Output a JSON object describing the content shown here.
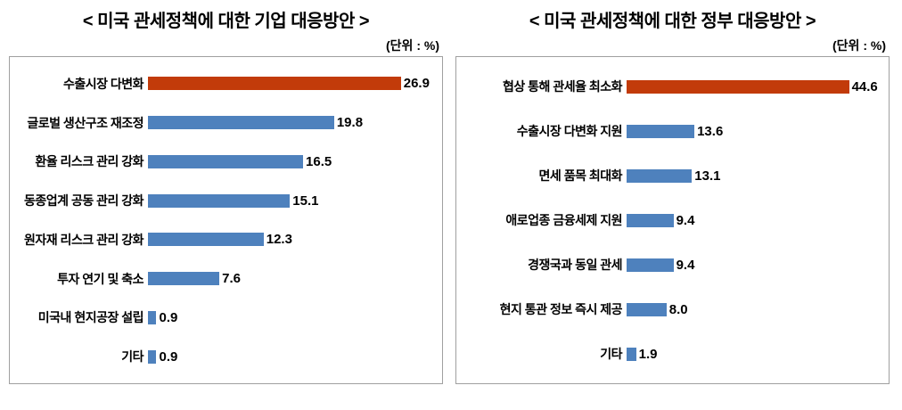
{
  "chart_data": [
    {
      "type": "bar",
      "orientation": "horizontal",
      "title": "<  미국  관세정책에  대한  기업  대응방안  >",
      "unit_label": "(단위 : %)",
      "categories": [
        "수출시장 다변화",
        "글로벌 생산구조 재조정",
        "환율 리스크 관리 강화",
        "동종업계 공동 관리 강화",
        "원자재 리스크 관리 강화",
        "투자 연기 및 축소",
        "미국내 현지공장 설립",
        "기타"
      ],
      "values": [
        26.9,
        19.8,
        16.5,
        15.1,
        12.3,
        7.6,
        0.9,
        0.9
      ],
      "xlim": [
        0,
        31
      ],
      "highlight_index": 0,
      "colors": {
        "highlight": "#c23b0a",
        "default": "#4e81bd"
      },
      "value_decimals": 1,
      "grid": false,
      "legend": false
    },
    {
      "type": "bar",
      "orientation": "horizontal",
      "title": "<  미국  관세정책에  대한  정부  대응방안  >",
      "unit_label": "(단위 : %)",
      "categories": [
        "협상 통해 관세율 최소화",
        "수출시장 다변화 지원",
        "면세 품목 최대화",
        "애로업종 금융세제 지원",
        "경쟁국과 동일 관세",
        "현지 통관 정보 즉시 제공",
        "기타"
      ],
      "values": [
        44.6,
        13.6,
        13.1,
        9.4,
        9.4,
        8.0,
        1.9
      ],
      "xlim": [
        0,
        52
      ],
      "highlight_index": 0,
      "colors": {
        "highlight": "#c23b0a",
        "default": "#4e81bd"
      },
      "value_decimals": 1,
      "grid": false,
      "legend": false
    }
  ]
}
